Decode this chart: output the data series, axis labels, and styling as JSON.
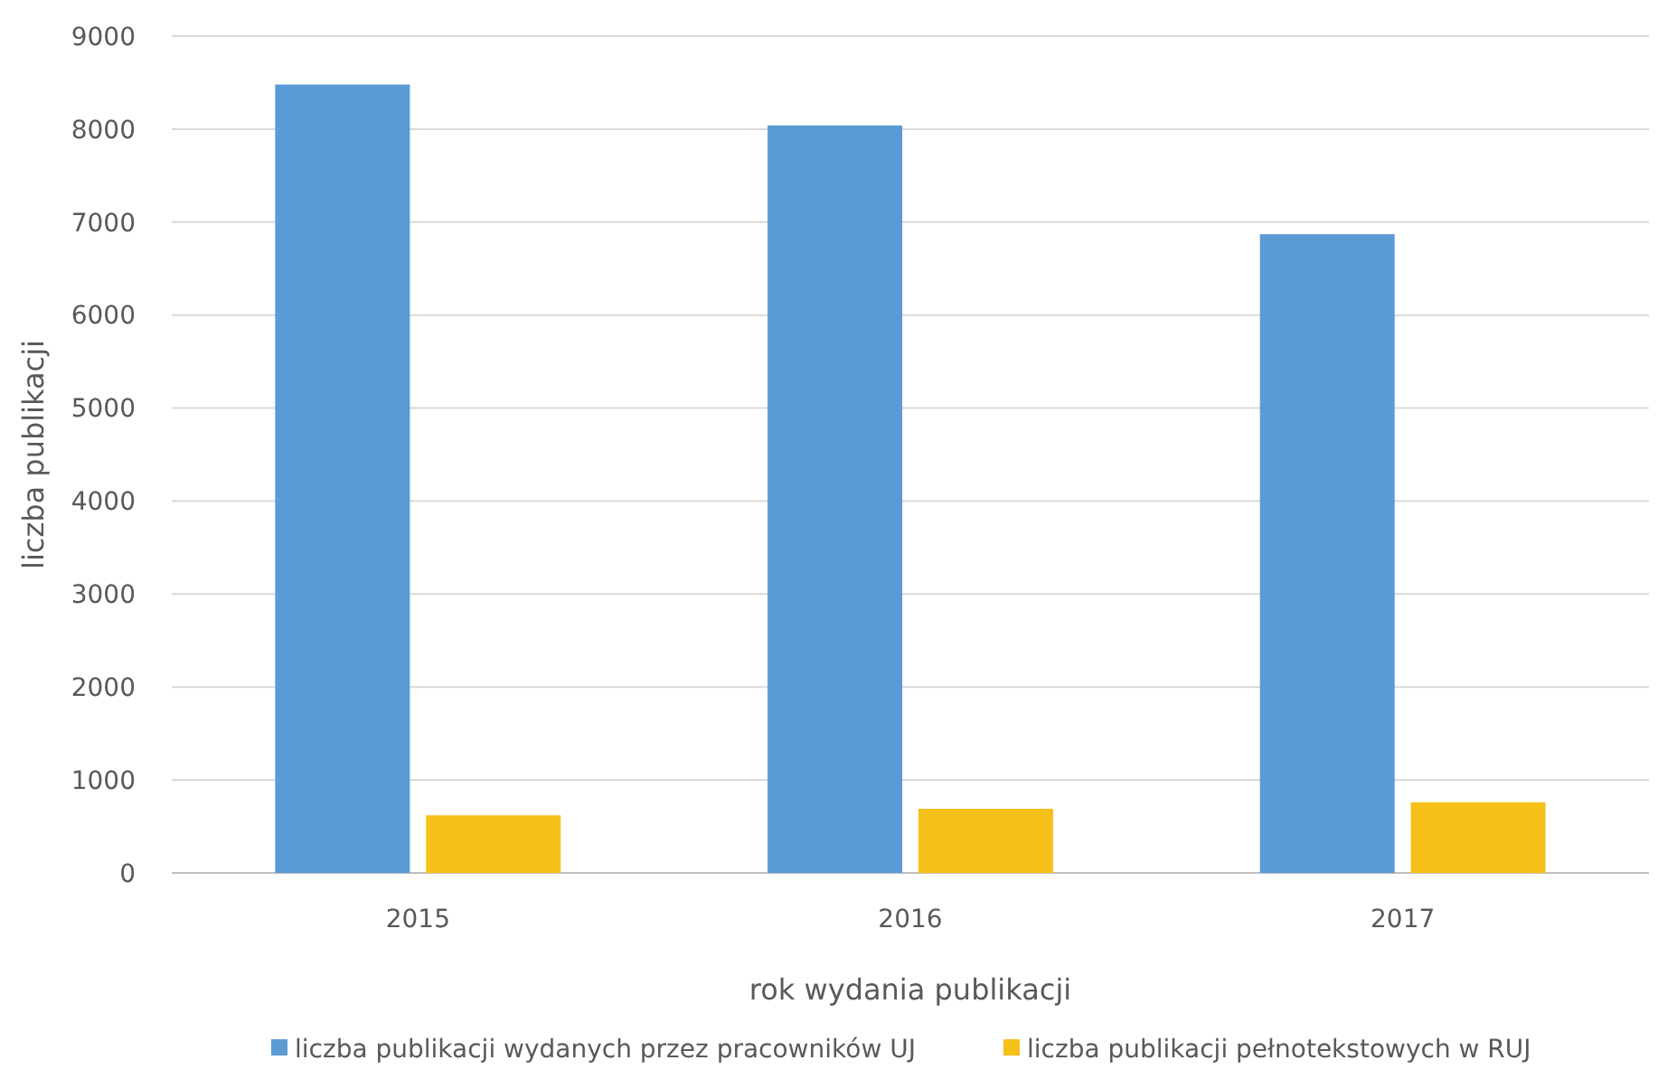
{
  "chart_data": {
    "type": "bar",
    "xlabel": "rok wydania publikacji",
    "ylabel": "liczba publikacji",
    "categories": [
      "2015",
      "2016",
      "2017"
    ],
    "series": [
      {
        "name": "liczba publikacji wydanych przez pracowników UJ",
        "color": "#5b9bd5",
        "values": [
          8480,
          8040,
          6870
        ]
      },
      {
        "name": "liczba publikacji pełnotekstowych w RUJ",
        "color": "#f5c01a",
        "values": [
          620,
          690,
          760
        ]
      }
    ],
    "ylim": [
      0,
      9000
    ],
    "yticks": [
      0,
      1000,
      2000,
      3000,
      4000,
      5000,
      6000,
      7000,
      8000,
      9000
    ],
    "grid": "y",
    "legend": "bottom"
  }
}
